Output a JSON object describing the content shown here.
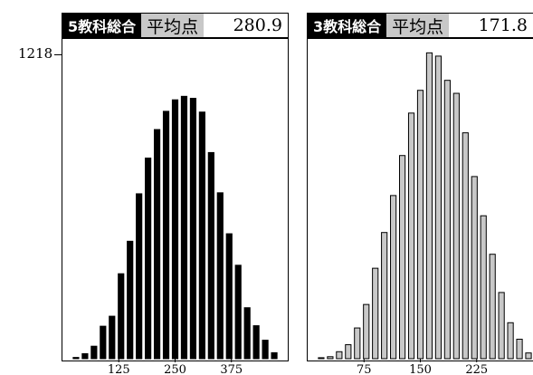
{
  "chart_data": [
    {
      "type": "bar",
      "panel": "left",
      "subject": "5教科総合",
      "average_label": "平均点",
      "average_value": "280.9",
      "ymax_label": "1218",
      "ylim": [
        0,
        1218
      ],
      "xlim": [
        0,
        500
      ],
      "bin_width": 20,
      "xticks": [
        125,
        250,
        375
      ],
      "bar_color": "#000000",
      "x": [
        30,
        50,
        70,
        90,
        110,
        130,
        150,
        170,
        190,
        210,
        230,
        250,
        270,
        290,
        310,
        330,
        350,
        370,
        390,
        410,
        430,
        450,
        470
      ],
      "values": [
        5,
        20,
        50,
        130,
        170,
        340,
        470,
        660,
        803,
        917,
        990,
        1036,
        1050,
        1042,
        987,
        825,
        664,
        500,
        374,
        204,
        132,
        74,
        24
      ]
    },
    {
      "type": "bar",
      "panel": "right",
      "subject": "3教科総合",
      "average_label": "平均点",
      "average_value": "171.8",
      "ylim": [
        0,
        1218
      ],
      "xlim": [
        0,
        300
      ],
      "bin_width": 12,
      "xticks": [
        75,
        150,
        225
      ],
      "bar_color": "#c8c8c8",
      "x": [
        18,
        30,
        42,
        54,
        66,
        78,
        90,
        102,
        114,
        126,
        138,
        150,
        162,
        174,
        186,
        198,
        210,
        222,
        234,
        246,
        258,
        270,
        282,
        294
      ],
      "values": [
        4,
        8,
        28,
        56,
        123,
        217,
        362,
        505,
        653,
        813,
        983,
        1074,
        1224,
        1211,
        1114,
        1062,
        904,
        729,
        572,
        418,
        265,
        144,
        78,
        23
      ]
    }
  ]
}
